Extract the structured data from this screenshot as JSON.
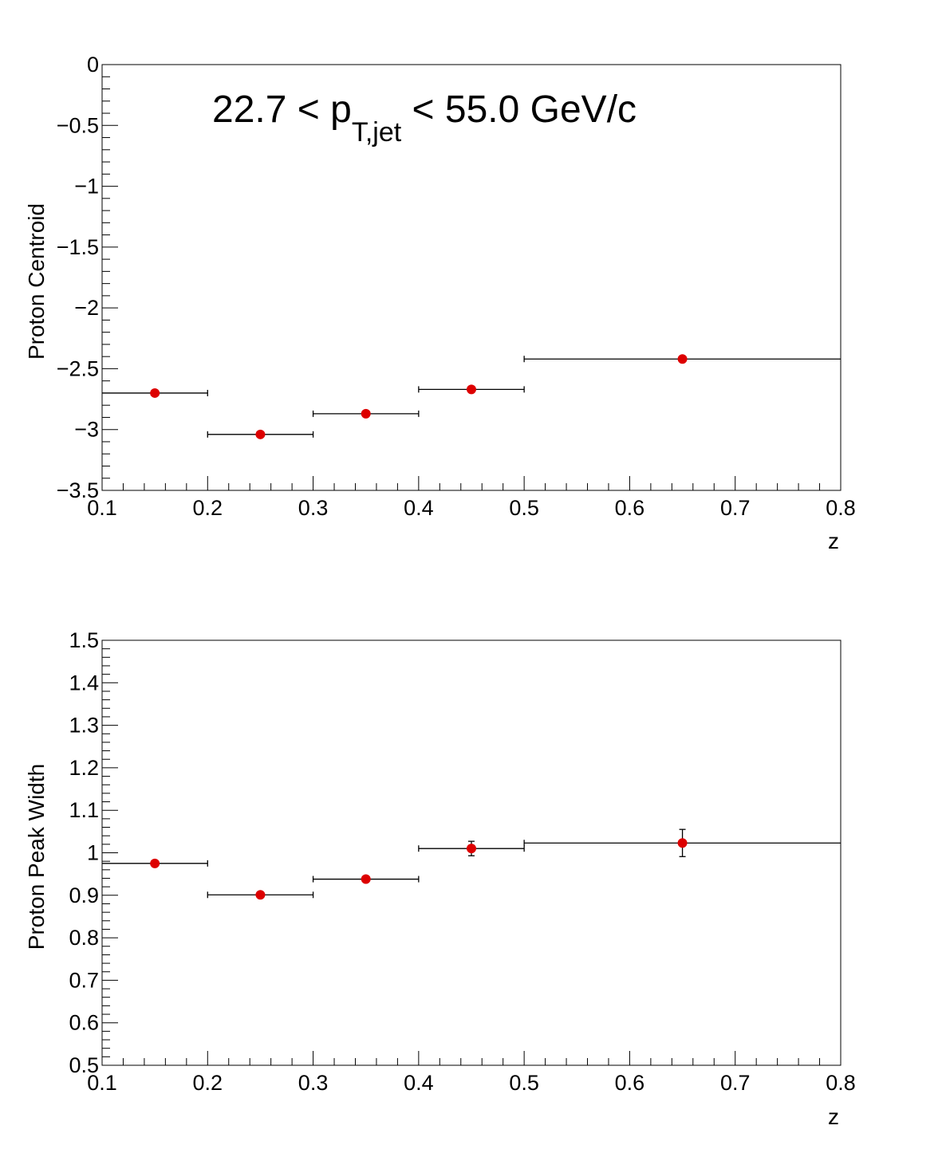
{
  "chart_data": [
    {
      "type": "scatter",
      "annotation": {
        "prefix": "22.7 < p",
        "subscript": "T,jet",
        "suffix": " < 55.0 GeV/c"
      },
      "xlabel": "z",
      "ylabel": "Proton Centroid",
      "xlim": [
        0.1,
        0.8
      ],
      "ylim": [
        -3.5,
        0
      ],
      "x_ticks": [
        0.1,
        0.2,
        0.3,
        0.4,
        0.5,
        0.6,
        0.7,
        0.8
      ],
      "x_tick_labels": [
        "0.1",
        "0.2",
        "0.3",
        "0.4",
        "0.5",
        "0.6",
        "0.7",
        "0.8"
      ],
      "y_ticks": [
        0,
        -0.5,
        -1,
        -1.5,
        -2,
        -2.5,
        -3,
        -3.5
      ],
      "y_tick_labels": [
        "0",
        "−0.5",
        "−1",
        "−1.5",
        "−2",
        "−2.5",
        "−3",
        "−3.5"
      ],
      "grid": false,
      "marker_color": "#dd0000",
      "points": [
        {
          "x": 0.15,
          "x_low": 0.1,
          "x_high": 0.2,
          "y": -2.7,
          "y_err": 0.0
        },
        {
          "x": 0.25,
          "x_low": 0.2,
          "x_high": 0.3,
          "y": -3.04,
          "y_err": 0.0
        },
        {
          "x": 0.35,
          "x_low": 0.3,
          "x_high": 0.4,
          "y": -2.87,
          "y_err": 0.0
        },
        {
          "x": 0.45,
          "x_low": 0.4,
          "x_high": 0.5,
          "y": -2.67,
          "y_err": 0.0
        },
        {
          "x": 0.65,
          "x_low": 0.5,
          "x_high": 0.8,
          "y": -2.42,
          "y_err": 0.0
        }
      ]
    },
    {
      "type": "scatter",
      "xlabel": "z",
      "ylabel": "Proton Peak Width",
      "xlim": [
        0.1,
        0.8
      ],
      "ylim": [
        0.5,
        1.5
      ],
      "x_ticks": [
        0.1,
        0.2,
        0.3,
        0.4,
        0.5,
        0.6,
        0.7,
        0.8
      ],
      "x_tick_labels": [
        "0.1",
        "0.2",
        "0.3",
        "0.4",
        "0.5",
        "0.6",
        "0.7",
        "0.8"
      ],
      "y_ticks": [
        0.5,
        0.6,
        0.7,
        0.8,
        0.9,
        1.0,
        1.1,
        1.2,
        1.3,
        1.4,
        1.5
      ],
      "y_tick_labels": [
        "0.5",
        "0.6",
        "0.7",
        "0.8",
        "0.9",
        "1",
        "1.1",
        "1.2",
        "1.3",
        "1.4",
        "1.5"
      ],
      "grid": false,
      "marker_color": "#dd0000",
      "points": [
        {
          "x": 0.15,
          "x_low": 0.1,
          "x_high": 0.2,
          "y": 0.975,
          "y_err": 0.0
        },
        {
          "x": 0.25,
          "x_low": 0.2,
          "x_high": 0.3,
          "y": 0.901,
          "y_err": 0.0
        },
        {
          "x": 0.35,
          "x_low": 0.3,
          "x_high": 0.4,
          "y": 0.938,
          "y_err": 0.0
        },
        {
          "x": 0.45,
          "x_low": 0.4,
          "x_high": 0.5,
          "y": 1.01,
          "y_err": 0.017
        },
        {
          "x": 0.65,
          "x_low": 0.5,
          "x_high": 0.8,
          "y": 1.023,
          "y_err": 0.032
        }
      ]
    }
  ]
}
